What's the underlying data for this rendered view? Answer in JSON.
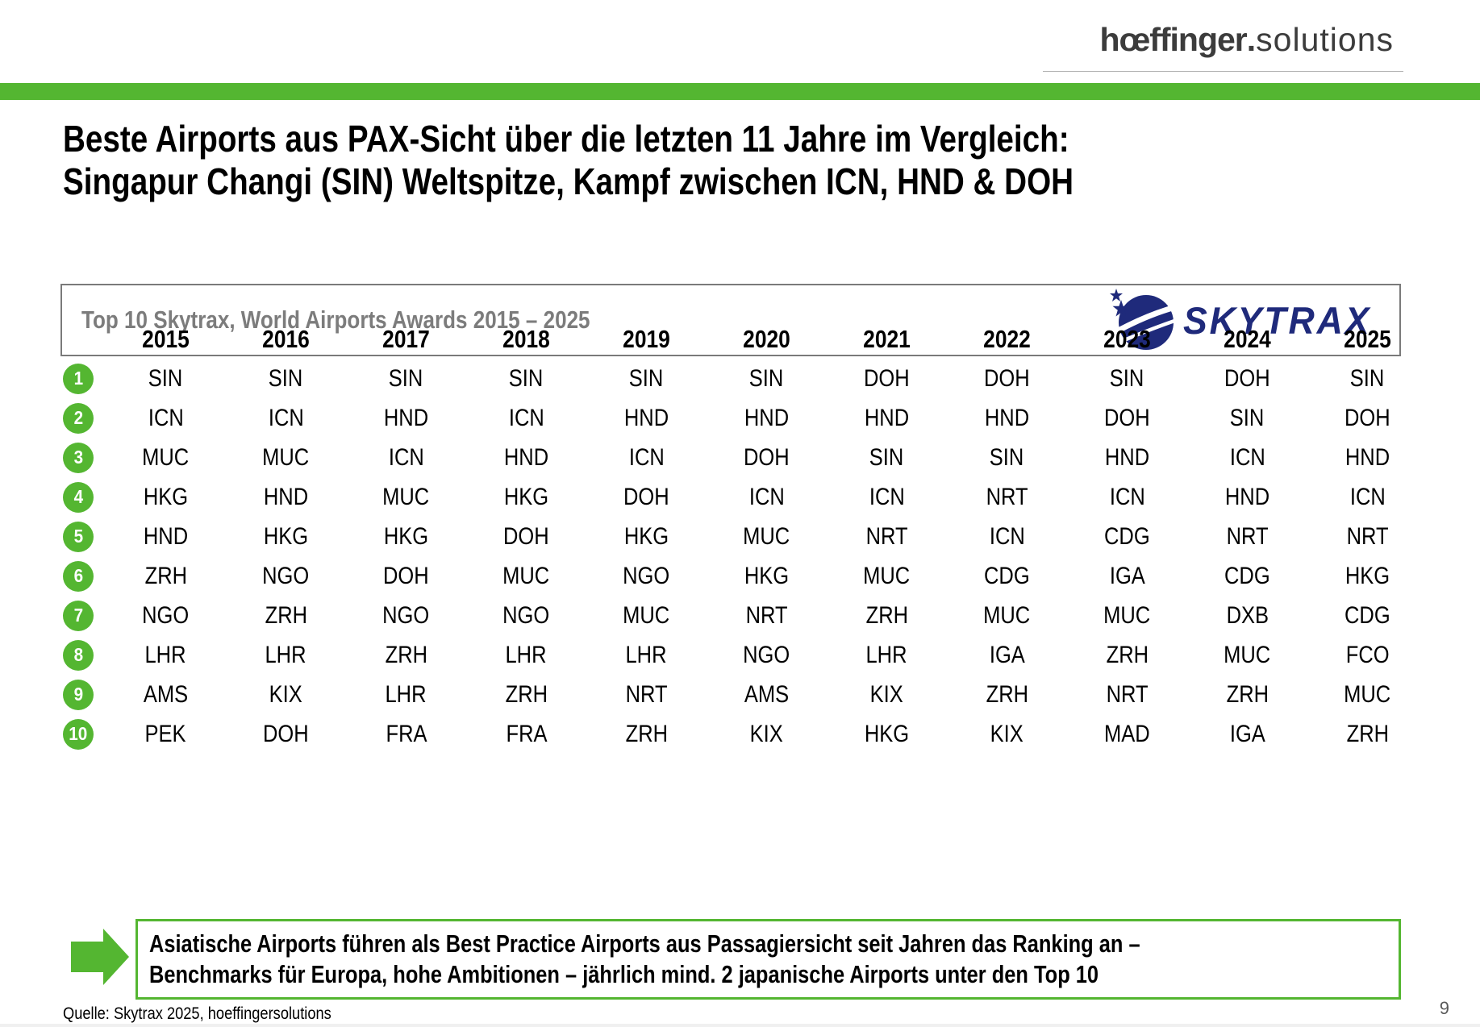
{
  "header": {
    "logo_primary": "hœffinger",
    "logo_dot": ".",
    "logo_secondary": "solutions"
  },
  "title": {
    "line1": "Beste Airports aus PAX-Sicht über die letzten 11 Jahre im Vergleich:",
    "line2": "Singapur Changi (SIN) Weltspitze, Kampf zwischen ICN, HND & DOH"
  },
  "banner": {
    "label": "Top 10 Skytrax, World Airports Awards 2015 – 2025",
    "skytrax_wordmark": "SKYTRAX"
  },
  "chart_data": {
    "type": "table",
    "title": "Top 10 Skytrax, World Airports Awards 2015 – 2025",
    "columns": [
      "2015",
      "2016",
      "2017",
      "2018",
      "2019",
      "2020",
      "2021",
      "2022",
      "2023",
      "2024",
      "2025"
    ],
    "row_labels": [
      "1",
      "2",
      "3",
      "4",
      "5",
      "6",
      "7",
      "8",
      "9",
      "10"
    ],
    "rows": [
      [
        "SIN",
        "SIN",
        "SIN",
        "SIN",
        "SIN",
        "SIN",
        "DOH",
        "DOH",
        "SIN",
        "DOH",
        "SIN"
      ],
      [
        "ICN",
        "ICN",
        "HND",
        "ICN",
        "HND",
        "HND",
        "HND",
        "HND",
        "DOH",
        "SIN",
        "DOH"
      ],
      [
        "MUC",
        "MUC",
        "ICN",
        "HND",
        "ICN",
        "DOH",
        "SIN",
        "SIN",
        "HND",
        "ICN",
        "HND"
      ],
      [
        "HKG",
        "HND",
        "MUC",
        "HKG",
        "DOH",
        "ICN",
        "ICN",
        "NRT",
        "ICN",
        "HND",
        "ICN"
      ],
      [
        "HND",
        "HKG",
        "HKG",
        "DOH",
        "HKG",
        "MUC",
        "NRT",
        "ICN",
        "CDG",
        "NRT",
        "NRT"
      ],
      [
        "ZRH",
        "NGO",
        "DOH",
        "MUC",
        "NGO",
        "HKG",
        "MUC",
        "CDG",
        "IGA",
        "CDG",
        "HKG"
      ],
      [
        "NGO",
        "ZRH",
        "NGO",
        "NGO",
        "MUC",
        "NRT",
        "ZRH",
        "MUC",
        "MUC",
        "DXB",
        "CDG"
      ],
      [
        "LHR",
        "LHR",
        "ZRH",
        "LHR",
        "LHR",
        "NGO",
        "LHR",
        "IGA",
        "ZRH",
        "MUC",
        "FCO"
      ],
      [
        "AMS",
        "KIX",
        "LHR",
        "ZRH",
        "NRT",
        "AMS",
        "KIX",
        "ZRH",
        "NRT",
        "ZRH",
        "MUC"
      ],
      [
        "PEK",
        "DOH",
        "FRA",
        "FRA",
        "ZRH",
        "KIX",
        "HKG",
        "KIX",
        "MAD",
        "IGA",
        "ZRH"
      ]
    ]
  },
  "callout": {
    "line1": "Asiatische Airports führen als Best Practice Airports aus Passagiersicht seit Jahren das Ranking an –",
    "line2": "Benchmarks für Europa, hohe Ambitionen – jährlich mind. 2 japanische Airports unter den Top 10"
  },
  "footer": {
    "source": "Quelle: Skytrax 2025, hoeffingersolutions",
    "page_number": "9"
  },
  "colors": {
    "accent_green": "#54B631",
    "skytrax_navy": "#1F2A7B",
    "banner_gray": "#7C7C7C"
  }
}
